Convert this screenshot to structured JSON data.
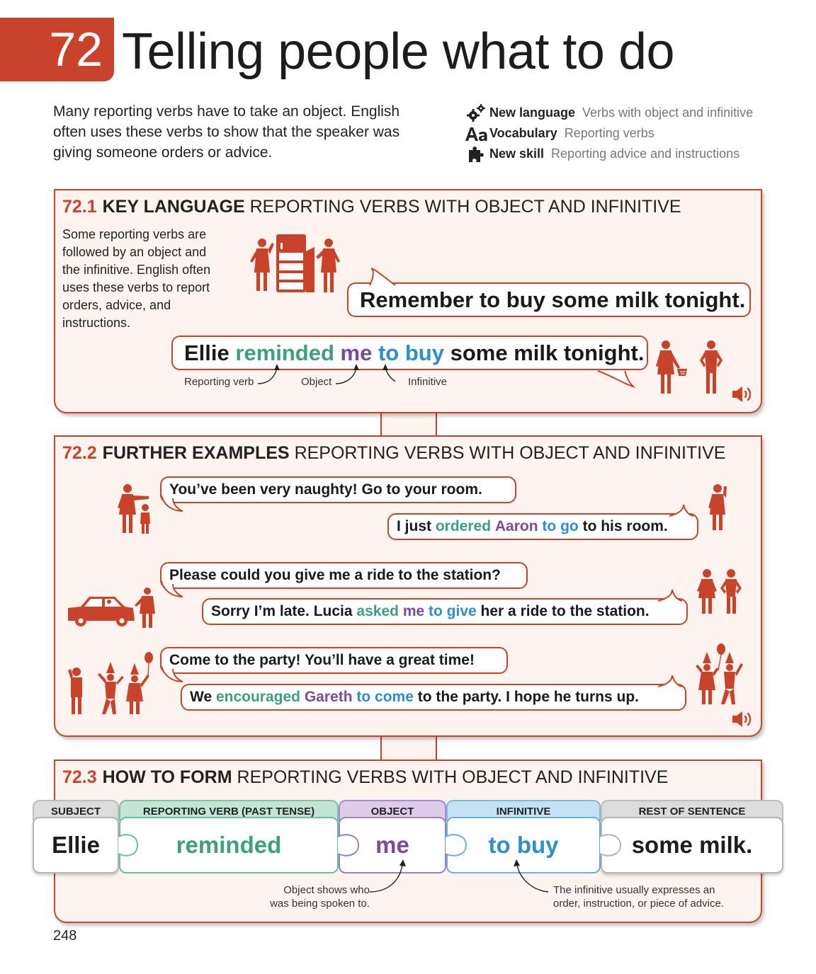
{
  "header": {
    "unit_number": "72",
    "title": "Telling people what to do",
    "intro": "Many reporting verbs have to take an object. English often uses these verbs to show that the speaker was giving someone orders or advice.",
    "meta": [
      {
        "icon": "gears-icon",
        "label": "New language",
        "value": "Verbs with object and infinitive"
      },
      {
        "icon": "aa-vocabulary-icon",
        "label": "Vocabulary",
        "value": "Reporting verbs"
      },
      {
        "icon": "puzzle-piece-icon",
        "label": "New skill",
        "value": "Reporting advice and instructions"
      }
    ]
  },
  "section1": {
    "number": "72.1",
    "heading_bold": "KEY LANGUAGE",
    "heading_rest": "REPORTING VERBS WITH OBJECT AND INFINITIVE",
    "description": "Some reporting verbs are followed by an object and the infinitive. English often uses these verbs to report orders, advice, and instructions.",
    "direct_speech": "Remember to buy some milk tonight.",
    "reported": {
      "subject": "Ellie",
      "verb": "reminded",
      "object": "me",
      "infinitive": "to buy",
      "rest": "some milk tonight."
    },
    "annotations": {
      "verb": "Reporting verb",
      "object": "Object",
      "infinitive": "Infinitive"
    }
  },
  "section2": {
    "number": "72.2",
    "heading_bold": "FURTHER EXAMPLES",
    "heading_rest": "REPORTING VERBS WITH OBJECT AND INFINITIVE",
    "examples": [
      {
        "direct": "You’ve been very naughty! Go to your room.",
        "reported": {
          "pre": "I just",
          "verb": "ordered",
          "object": "Aaron",
          "infinitive": "to go",
          "post": "to his room."
        }
      },
      {
        "direct": "Please could you give me a ride to the station?",
        "reported": {
          "pre": "Sorry I’m late. Lucia",
          "verb": "asked",
          "object": "me",
          "infinitive": "to give",
          "post": "her a ride to the station."
        }
      },
      {
        "direct": "Come to the party! You’ll have a great time!",
        "reported": {
          "pre": "We",
          "verb": "encouraged",
          "object": "Gareth",
          "infinitive": "to come",
          "post": "to the party. I hope he turns up."
        }
      }
    ]
  },
  "section3": {
    "number": "72.3",
    "heading_bold": "HOW TO FORM",
    "heading_rest": "REPORTING VERBS WITH OBJECT AND INFINITIVE",
    "columns": [
      {
        "header": "SUBJECT",
        "value": "Ellie"
      },
      {
        "header": "REPORTING VERB (PAST TENSE)",
        "value": "reminded"
      },
      {
        "header": "OBJECT",
        "value": "me"
      },
      {
        "header": "INFINITIVE",
        "value": "to buy"
      },
      {
        "header": "REST OF SENTENCE",
        "value": "some milk."
      }
    ],
    "note_object": "Object shows who was being spoken to.",
    "note_infinitive": "The infinitive usually expresses an order, instruction, or piece of advice."
  },
  "colors": {
    "accent": "#c8432a",
    "panel_bg": "#fdf3ef",
    "verb": "#3aa07e",
    "object": "#7a4aa0",
    "infinitive": "#2b8fce"
  },
  "page_number": "248"
}
